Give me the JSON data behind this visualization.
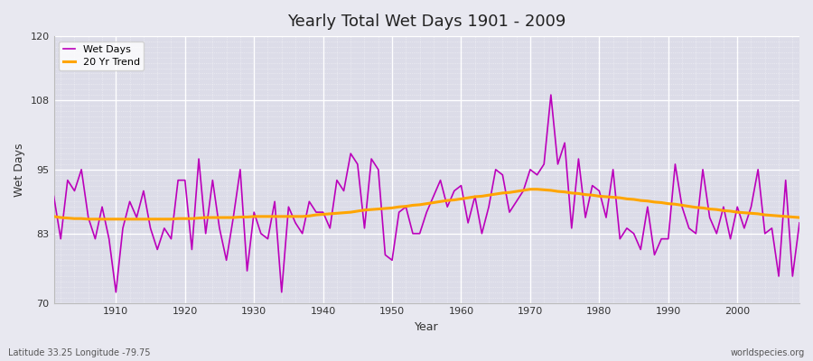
{
  "title": "Yearly Total Wet Days 1901 - 2009",
  "xlabel": "Year",
  "ylabel": "Wet Days",
  "subtitle": "Latitude 33.25 Longitude -79.75",
  "watermark": "worldspecies.org",
  "ylim": [
    70,
    120
  ],
  "yticks": [
    70,
    83,
    95,
    108,
    120
  ],
  "xticks": [
    1910,
    1920,
    1930,
    1940,
    1950,
    1960,
    1970,
    1980,
    1990,
    2000
  ],
  "line_color": "#bb00bb",
  "trend_color": "#FFA500",
  "plot_bg_color": "#dcdce8",
  "fig_bg_color": "#e8e8f0",
  "legend_wet": "Wet Days",
  "legend_trend": "20 Yr Trend",
  "years": [
    1901,
    1902,
    1903,
    1904,
    1905,
    1906,
    1907,
    1908,
    1909,
    1910,
    1911,
    1912,
    1913,
    1914,
    1915,
    1916,
    1917,
    1918,
    1919,
    1920,
    1921,
    1922,
    1923,
    1924,
    1925,
    1926,
    1927,
    1928,
    1929,
    1930,
    1931,
    1932,
    1933,
    1934,
    1935,
    1936,
    1937,
    1938,
    1939,
    1940,
    1941,
    1942,
    1943,
    1944,
    1945,
    1946,
    1947,
    1948,
    1949,
    1950,
    1951,
    1952,
    1953,
    1954,
    1955,
    1956,
    1957,
    1958,
    1959,
    1960,
    1961,
    1962,
    1963,
    1964,
    1965,
    1966,
    1967,
    1968,
    1969,
    1970,
    1971,
    1972,
    1973,
    1974,
    1975,
    1976,
    1977,
    1978,
    1979,
    1980,
    1981,
    1982,
    1983,
    1984,
    1985,
    1986,
    1987,
    1988,
    1989,
    1990,
    1991,
    1992,
    1993,
    1994,
    1995,
    1996,
    1997,
    1998,
    1999,
    2000,
    2001,
    2002,
    2003,
    2004,
    2005,
    2006,
    2007,
    2008,
    2009
  ],
  "wet_days": [
    90,
    82,
    93,
    91,
    95,
    86,
    82,
    88,
    82,
    72,
    84,
    89,
    86,
    91,
    84,
    80,
    84,
    82,
    93,
    93,
    80,
    97,
    83,
    93,
    84,
    78,
    86,
    95,
    76,
    87,
    83,
    82,
    89,
    72,
    88,
    85,
    83,
    89,
    87,
    87,
    84,
    93,
    91,
    98,
    96,
    84,
    97,
    95,
    79,
    78,
    87,
    88,
    83,
    83,
    87,
    90,
    93,
    88,
    91,
    92,
    85,
    90,
    83,
    88,
    95,
    94,
    87,
    89,
    91,
    95,
    94,
    96,
    109,
    96,
    100,
    84,
    97,
    86,
    92,
    91,
    86,
    95,
    82,
    84,
    83,
    80,
    88,
    79,
    82,
    82,
    96,
    88,
    84,
    83,
    95,
    86,
    83,
    88,
    82,
    88,
    84,
    88,
    95,
    83,
    84,
    75,
    93,
    75,
    85
  ],
  "trend_values": [
    86.2,
    86.0,
    85.9,
    85.8,
    85.8,
    85.7,
    85.7,
    85.7,
    85.7,
    85.7,
    85.7,
    85.7,
    85.7,
    85.7,
    85.7,
    85.7,
    85.7,
    85.7,
    85.8,
    85.8,
    85.8,
    85.9,
    86.0,
    86.0,
    86.0,
    86.0,
    86.0,
    86.1,
    86.1,
    86.2,
    86.2,
    86.2,
    86.2,
    86.2,
    86.2,
    86.2,
    86.2,
    86.3,
    86.5,
    86.6,
    86.7,
    86.8,
    86.9,
    87.0,
    87.2,
    87.4,
    87.5,
    87.6,
    87.7,
    87.8,
    88.0,
    88.1,
    88.3,
    88.4,
    88.6,
    88.8,
    89.0,
    89.2,
    89.3,
    89.5,
    89.7,
    89.9,
    90.0,
    90.2,
    90.4,
    90.6,
    90.7,
    90.9,
    91.1,
    91.3,
    91.3,
    91.2,
    91.1,
    90.9,
    90.8,
    90.6,
    90.5,
    90.3,
    90.2,
    90.0,
    89.9,
    89.8,
    89.7,
    89.5,
    89.4,
    89.2,
    89.1,
    88.9,
    88.8,
    88.6,
    88.5,
    88.3,
    88.1,
    87.9,
    87.8,
    87.6,
    87.5,
    87.3,
    87.2,
    87.0,
    86.9,
    86.8,
    86.7,
    86.5,
    86.4,
    86.3,
    86.2,
    86.1,
    86.0
  ]
}
